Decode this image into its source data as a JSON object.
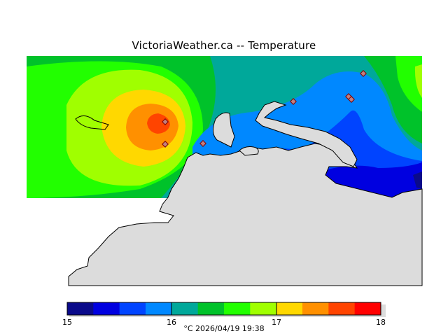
{
  "title": "VictoriaWeather.ca -- Temperature",
  "footer": "°C  2026/04/19 19:38",
  "legend": {
    "ticks": [
      "15",
      "16",
      "17",
      "18"
    ],
    "colors": [
      "#0a0a8a",
      "#0000e0",
      "#0044ff",
      "#0088ff",
      "#00a89a",
      "#00c22a",
      "#22ff00",
      "#a0ff00",
      "#ffd800",
      "#ff9000",
      "#ff4400",
      "#ff0000"
    ]
  },
  "map": {
    "land_color": "#dcdcdc",
    "stations": [
      "station-1",
      "station-2",
      "station-3",
      "station-4",
      "station-5",
      "station-6",
      "station-7"
    ]
  }
}
